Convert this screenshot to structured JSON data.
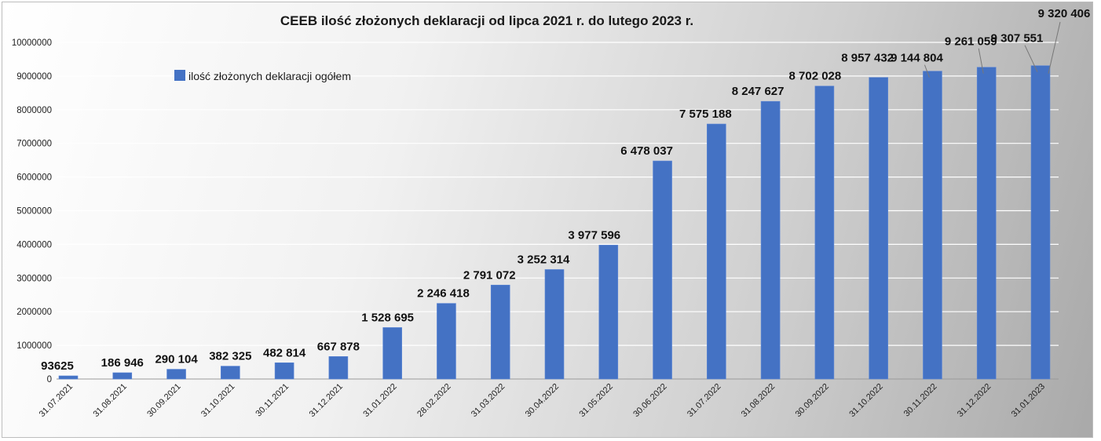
{
  "chart_data": {
    "type": "bar",
    "title": "CEEB ilość złożonych deklaracji od lipca 2021 r. do lutego 2023 r.",
    "xlabel": "",
    "ylabel": "",
    "ylim": [
      0,
      10000000
    ],
    "yticks": [
      "0",
      "1000000",
      "2000000",
      "3000000",
      "4000000",
      "5000000",
      "6000000",
      "7000000",
      "8000000",
      "9000000",
      "10000000"
    ],
    "grid": true,
    "legend_position": "top-left",
    "bar_color": "#4472c4",
    "categories": [
      "31.07.2021",
      "31.08.2021",
      "30.09.2021",
      "31.10.2021",
      "30.11.2021",
      "31.12.2021",
      "31.01.2022",
      "28.02.2022",
      "31.03.2022",
      "30.04.2022",
      "31.05.2022",
      "30.06.2022",
      "31.07.2022",
      "31.08.2022",
      "30.09.2022",
      "31.10.2022",
      "30.11.2022",
      "31.12.2022",
      "31.01.2023"
    ],
    "series": [
      {
        "name": "ilość złożonych deklaracji ogółem",
        "values": [
          93625,
          186946,
          290104,
          382325,
          482814,
          667878,
          1528695,
          2246418,
          2791072,
          3252314,
          3977596,
          6478037,
          7575188,
          8247627,
          8702028,
          8957432,
          9144804,
          9261059,
          9307551
        ],
        "data_labels": [
          "93625",
          "186 946",
          "290 104",
          "382 325",
          "482 814",
          "667 878",
          "1 528 695",
          "2 246 418",
          "2 791 072",
          "3 252 314",
          "3 977 596",
          "6 478 037",
          "7 575 188",
          "8 247 627",
          "8 702 028",
          "8 957 432",
          "9 144 804",
          "9 261 059",
          "9 307 551"
        ]
      }
    ],
    "extra_label": "9 320 406"
  }
}
